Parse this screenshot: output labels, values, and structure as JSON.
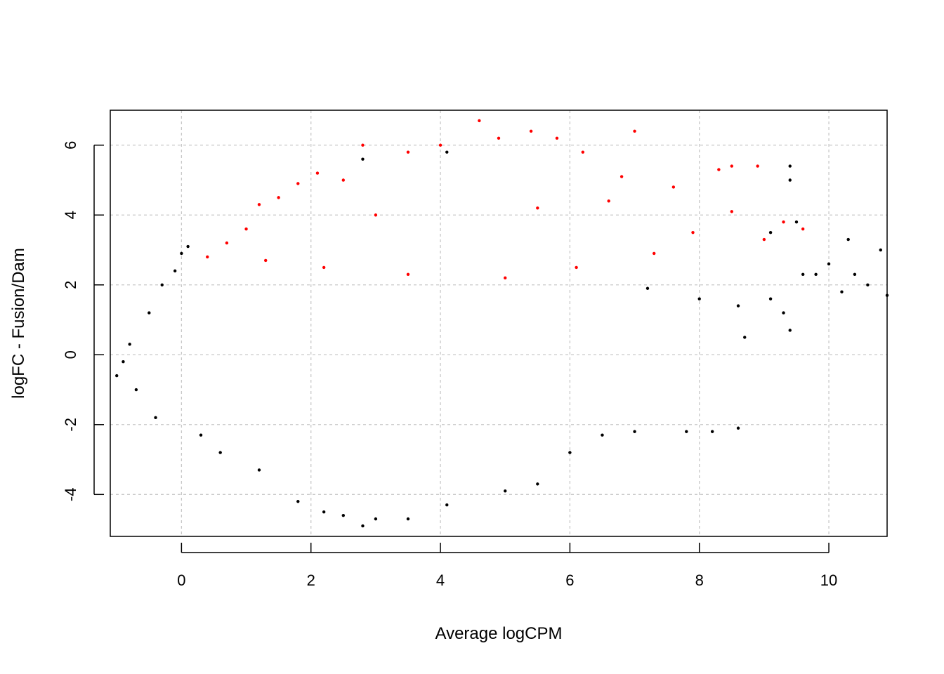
{
  "chart_data": {
    "type": "scatter",
    "title": "",
    "xlabel": "Average logCPM",
    "ylabel": "logFC - Fusion/Dam",
    "xlim": [
      -1.1,
      10.9
    ],
    "ylim": [
      -5.2,
      7.0
    ],
    "x_ticks": [
      0,
      2,
      4,
      6,
      8,
      10
    ],
    "y_ticks": [
      -4,
      -2,
      0,
      2,
      4,
      6
    ],
    "x_tick_labels": [
      "0",
      "2",
      "4",
      "6",
      "8",
      "10"
    ],
    "y_tick_labels": [
      "-4",
      "-2",
      "0",
      "2",
      "4",
      "6"
    ],
    "grid": true,
    "legend": "none",
    "significance_threshold_logFC": 2,
    "colors": {
      "not_significant": "#000000",
      "significant": "#ff0000",
      "grid": "#c8c8c8"
    },
    "series": [
      {
        "status": "not significant",
        "color": "#000000",
        "points": [
          [
            -1.0,
            -0.6
          ],
          [
            -0.9,
            -0.2
          ],
          [
            -0.8,
            0.3
          ],
          [
            -0.7,
            -1.0
          ],
          [
            -0.5,
            1.2
          ],
          [
            -0.4,
            -1.8
          ],
          [
            -0.3,
            2.0
          ],
          [
            -0.1,
            2.4
          ],
          [
            0.0,
            2.9
          ],
          [
            0.1,
            3.1
          ],
          [
            0.3,
            -2.3
          ],
          [
            0.6,
            -2.8
          ],
          [
            1.2,
            -3.3
          ],
          [
            1.8,
            -4.2
          ],
          [
            2.2,
            -4.5
          ],
          [
            2.5,
            -4.6
          ],
          [
            2.8,
            -4.9
          ],
          [
            3.0,
            -4.7
          ],
          [
            3.5,
            -4.7
          ],
          [
            4.1,
            -4.3
          ],
          [
            5.0,
            -3.9
          ],
          [
            5.5,
            -3.7
          ],
          [
            6.0,
            -2.8
          ],
          [
            6.5,
            -2.3
          ],
          [
            7.0,
            -2.2
          ],
          [
            7.8,
            -2.2
          ],
          [
            8.2,
            -2.2
          ],
          [
            8.6,
            -2.1
          ],
          [
            7.2,
            1.9
          ],
          [
            8.0,
            1.6
          ],
          [
            8.6,
            1.4
          ],
          [
            8.7,
            0.5
          ],
          [
            9.1,
            1.6
          ],
          [
            9.3,
            1.2
          ],
          [
            9.4,
            0.7
          ],
          [
            9.6,
            2.3
          ],
          [
            9.8,
            2.3
          ],
          [
            10.0,
            2.6
          ],
          [
            10.2,
            1.8
          ],
          [
            10.3,
            3.3
          ],
          [
            10.4,
            2.3
          ],
          [
            10.6,
            2.0
          ],
          [
            10.8,
            3.0
          ],
          [
            10.9,
            1.7
          ],
          [
            9.4,
            5.4
          ],
          [
            9.4,
            5.0
          ],
          [
            9.5,
            3.8
          ],
          [
            9.1,
            3.5
          ],
          [
            2.8,
            5.6
          ],
          [
            4.1,
            5.8
          ]
        ]
      },
      {
        "status": "significant",
        "color": "#ff0000",
        "points": [
          [
            0.4,
            2.8
          ],
          [
            0.7,
            3.2
          ],
          [
            1.0,
            3.6
          ],
          [
            1.2,
            4.3
          ],
          [
            1.5,
            4.5
          ],
          [
            1.8,
            4.9
          ],
          [
            2.1,
            5.2
          ],
          [
            2.5,
            5.0
          ],
          [
            2.8,
            6.0
          ],
          [
            3.5,
            5.8
          ],
          [
            4.0,
            6.0
          ],
          [
            4.6,
            6.7
          ],
          [
            4.9,
            6.2
          ],
          [
            5.4,
            6.4
          ],
          [
            5.8,
            6.2
          ],
          [
            7.0,
            6.4
          ],
          [
            6.2,
            5.8
          ],
          [
            6.8,
            5.1
          ],
          [
            7.6,
            4.8
          ],
          [
            8.3,
            5.3
          ],
          [
            8.5,
            5.4
          ],
          [
            8.9,
            5.4
          ],
          [
            8.5,
            4.1
          ],
          [
            9.3,
            3.8
          ],
          [
            9.6,
            3.6
          ],
          [
            9.0,
            3.3
          ],
          [
            7.9,
            3.5
          ],
          [
            7.3,
            2.9
          ],
          [
            6.1,
            2.5
          ],
          [
            5.0,
            2.2
          ],
          [
            3.5,
            2.3
          ],
          [
            2.2,
            2.5
          ],
          [
            1.3,
            2.7
          ],
          [
            6.6,
            4.4
          ],
          [
            5.5,
            4.2
          ],
          [
            3.0,
            4.0
          ]
        ]
      }
    ]
  }
}
